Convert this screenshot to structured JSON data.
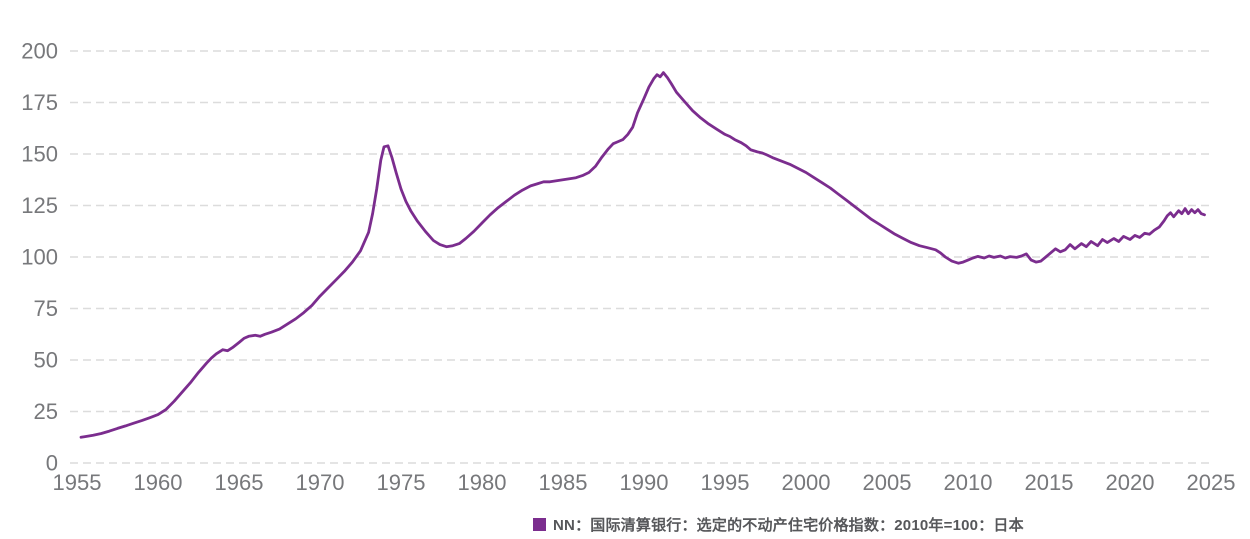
{
  "chart_data": {
    "type": "line",
    "title": "",
    "xlabel": "",
    "ylabel": "",
    "xlim": [
      1955,
      2025
    ],
    "ylim": [
      0,
      200
    ],
    "x_ticks": [
      1955,
      1960,
      1965,
      1970,
      1975,
      1980,
      1985,
      1990,
      1995,
      2000,
      2005,
      2010,
      2015,
      2020,
      2025
    ],
    "y_ticks": [
      0,
      25,
      50,
      75,
      100,
      125,
      150,
      175,
      200
    ],
    "grid": "horizontal-dashed",
    "legend_position": "bottom",
    "series": [
      {
        "name": "NN：国际清算银行：选定的不动产住宅价格指数：2010年=100：日本",
        "color": "#7B2D8E",
        "points": [
          [
            1955.25,
            12.5
          ],
          [
            1955.5,
            12.8
          ],
          [
            1956,
            13.5
          ],
          [
            1956.5,
            14.3
          ],
          [
            1957,
            15.5
          ],
          [
            1957.5,
            16.8
          ],
          [
            1958,
            18
          ],
          [
            1958.5,
            19.3
          ],
          [
            1959,
            20.6
          ],
          [
            1959.5,
            22
          ],
          [
            1960,
            23.5
          ],
          [
            1960.5,
            26
          ],
          [
            1961,
            30
          ],
          [
            1961.5,
            34.5
          ],
          [
            1962,
            39
          ],
          [
            1962.5,
            44
          ],
          [
            1963,
            48.5
          ],
          [
            1963.3,
            51
          ],
          [
            1963.6,
            53
          ],
          [
            1964,
            55
          ],
          [
            1964.3,
            54.5
          ],
          [
            1964.6,
            56
          ],
          [
            1965,
            58.5
          ],
          [
            1965.3,
            60.5
          ],
          [
            1965.6,
            61.5
          ],
          [
            1966,
            62
          ],
          [
            1966.3,
            61.5
          ],
          [
            1966.6,
            62.5
          ],
          [
            1967,
            63.5
          ],
          [
            1967.5,
            65
          ],
          [
            1968,
            67.5
          ],
          [
            1968.5,
            70
          ],
          [
            1969,
            73
          ],
          [
            1969.5,
            76.5
          ],
          [
            1970,
            81
          ],
          [
            1970.5,
            85
          ],
          [
            1971,
            89
          ],
          [
            1971.5,
            93
          ],
          [
            1972,
            97.5
          ],
          [
            1972.5,
            103
          ],
          [
            1973,
            112
          ],
          [
            1973.25,
            121
          ],
          [
            1973.5,
            133
          ],
          [
            1973.75,
            147
          ],
          [
            1973.95,
            153.5
          ],
          [
            1974.2,
            154
          ],
          [
            1974.45,
            148
          ],
          [
            1974.7,
            141
          ],
          [
            1975,
            133
          ],
          [
            1975.3,
            127
          ],
          [
            1975.6,
            122.5
          ],
          [
            1976,
            117.5
          ],
          [
            1976.5,
            112.5
          ],
          [
            1977,
            108
          ],
          [
            1977.4,
            106
          ],
          [
            1977.8,
            105
          ],
          [
            1978.2,
            105.5
          ],
          [
            1978.6,
            106.5
          ],
          [
            1979,
            109
          ],
          [
            1979.5,
            112.5
          ],
          [
            1980,
            116.5
          ],
          [
            1980.5,
            120.5
          ],
          [
            1981,
            124
          ],
          [
            1981.5,
            127
          ],
          [
            1982,
            130
          ],
          [
            1982.5,
            132.5
          ],
          [
            1983,
            134.5
          ],
          [
            1983.4,
            135.5
          ],
          [
            1983.8,
            136.5
          ],
          [
            1984.2,
            136.5
          ],
          [
            1984.6,
            137
          ],
          [
            1985,
            137.5
          ],
          [
            1985.4,
            138
          ],
          [
            1985.8,
            138.5
          ],
          [
            1986.2,
            139.5
          ],
          [
            1986.6,
            141
          ],
          [
            1987,
            144
          ],
          [
            1987.4,
            148.5
          ],
          [
            1987.8,
            152.5
          ],
          [
            1988.1,
            155
          ],
          [
            1988.4,
            156
          ],
          [
            1988.7,
            157
          ],
          [
            1989,
            159.5
          ],
          [
            1989.3,
            163
          ],
          [
            1989.6,
            170
          ],
          [
            1990,
            177
          ],
          [
            1990.3,
            182.5
          ],
          [
            1990.6,
            186.5
          ],
          [
            1990.8,
            188.5
          ],
          [
            1991,
            187.5
          ],
          [
            1991.2,
            189.5
          ],
          [
            1991.45,
            187
          ],
          [
            1991.7,
            184
          ],
          [
            1992,
            180
          ],
          [
            1992.5,
            175.5
          ],
          [
            1993,
            171
          ],
          [
            1993.5,
            167.5
          ],
          [
            1994,
            164.5
          ],
          [
            1994.5,
            162
          ],
          [
            1995,
            159.5
          ],
          [
            1995.3,
            158.5
          ],
          [
            1995.6,
            157
          ],
          [
            1996,
            155.5
          ],
          [
            1996.3,
            154
          ],
          [
            1996.6,
            152
          ],
          [
            1997,
            151
          ],
          [
            1997.3,
            150.5
          ],
          [
            1997.6,
            149.5
          ],
          [
            1998,
            148
          ],
          [
            1998.5,
            146.5
          ],
          [
            1999,
            145
          ],
          [
            1999.5,
            143
          ],
          [
            2000,
            141
          ],
          [
            2000.5,
            138.5
          ],
          [
            2001,
            136
          ],
          [
            2001.5,
            133.5
          ],
          [
            2002,
            130.5
          ],
          [
            2002.5,
            127.5
          ],
          [
            2003,
            124.5
          ],
          [
            2003.5,
            121.5
          ],
          [
            2004,
            118.5
          ],
          [
            2004.5,
            116
          ],
          [
            2005,
            113.5
          ],
          [
            2005.5,
            111
          ],
          [
            2006,
            109
          ],
          [
            2006.5,
            107
          ],
          [
            2007,
            105.5
          ],
          [
            2007.5,
            104.5
          ],
          [
            2008,
            103.5
          ],
          [
            2008.3,
            102
          ],
          [
            2008.6,
            100
          ],
          [
            2009,
            98
          ],
          [
            2009.4,
            97
          ],
          [
            2009.7,
            97.5
          ],
          [
            2010,
            98.5
          ],
          [
            2010.3,
            99.5
          ],
          [
            2010.6,
            100.3
          ],
          [
            2011,
            99.5
          ],
          [
            2011.3,
            100.5
          ],
          [
            2011.6,
            99.8
          ],
          [
            2012,
            100.5
          ],
          [
            2012.3,
            99.5
          ],
          [
            2012.6,
            100.2
          ],
          [
            2013,
            99.8
          ],
          [
            2013.3,
            100.5
          ],
          [
            2013.6,
            101.5
          ],
          [
            2013.9,
            98.5
          ],
          [
            2014.2,
            97.5
          ],
          [
            2014.5,
            98
          ],
          [
            2014.8,
            100
          ],
          [
            2015.1,
            102
          ],
          [
            2015.4,
            104
          ],
          [
            2015.7,
            102.5
          ],
          [
            2016,
            103.5
          ],
          [
            2016.3,
            106
          ],
          [
            2016.6,
            104
          ],
          [
            2017,
            106.5
          ],
          [
            2017.3,
            105
          ],
          [
            2017.6,
            107.5
          ],
          [
            2018,
            105.5
          ],
          [
            2018.3,
            108.5
          ],
          [
            2018.6,
            107
          ],
          [
            2019,
            109
          ],
          [
            2019.3,
            107.5
          ],
          [
            2019.6,
            110
          ],
          [
            2020,
            108.5
          ],
          [
            2020.3,
            110.5
          ],
          [
            2020.6,
            109.5
          ],
          [
            2020.9,
            111.5
          ],
          [
            2021.2,
            111
          ],
          [
            2021.5,
            113
          ],
          [
            2021.8,
            114.5
          ],
          [
            2022.1,
            117.5
          ],
          [
            2022.3,
            120
          ],
          [
            2022.5,
            121.5
          ],
          [
            2022.7,
            119.5
          ],
          [
            2023,
            122.5
          ],
          [
            2023.2,
            121
          ],
          [
            2023.4,
            123.5
          ],
          [
            2023.6,
            121
          ],
          [
            2023.8,
            123
          ],
          [
            2024,
            121.5
          ],
          [
            2024.2,
            123
          ],
          [
            2024.4,
            121
          ],
          [
            2024.6,
            120.5
          ]
        ]
      }
    ]
  },
  "legend": {
    "label": "NN：国际清算银行：选定的不动产住宅价格指数：2010年=100：日本",
    "swatch_color": "#7B2D8E"
  },
  "colors": {
    "line": "#7B2D8E",
    "gridline": "#dcdcdc",
    "tick_label": "#77787b",
    "legend_text": "#56575a",
    "background": "#ffffff"
  }
}
